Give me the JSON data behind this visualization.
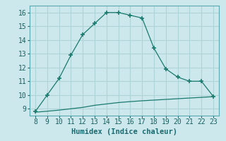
{
  "x_main": [
    8,
    9,
    10,
    11,
    12,
    13,
    14,
    15,
    16,
    17,
    18,
    19,
    20,
    21,
    22,
    23
  ],
  "y_main": [
    8.8,
    10.0,
    11.2,
    12.9,
    14.4,
    15.2,
    16.0,
    16.0,
    15.8,
    15.6,
    13.4,
    11.9,
    11.3,
    11.0,
    11.0,
    9.9
  ],
  "x_flat": [
    8,
    9,
    10,
    11,
    12,
    13,
    14,
    15,
    16,
    17,
    18,
    19,
    20,
    21,
    22,
    23
  ],
  "y_flat": [
    8.75,
    8.82,
    8.9,
    9.0,
    9.1,
    9.25,
    9.35,
    9.45,
    9.52,
    9.58,
    9.63,
    9.68,
    9.73,
    9.78,
    9.83,
    9.88
  ],
  "line_color": "#1a7a6e",
  "bg_color": "#cce8ec",
  "grid_color": "#aed4d8",
  "xlabel": "Humidex (Indice chaleur)",
  "xlim": [
    7.5,
    23.5
  ],
  "ylim": [
    8.5,
    16.5
  ],
  "xticks": [
    8,
    9,
    10,
    11,
    12,
    13,
    14,
    15,
    16,
    17,
    18,
    19,
    20,
    21,
    22,
    23
  ],
  "yticks": [
    9,
    10,
    11,
    12,
    13,
    14,
    15,
    16
  ],
  "tick_fontsize": 7,
  "xlabel_fontsize": 7.5
}
